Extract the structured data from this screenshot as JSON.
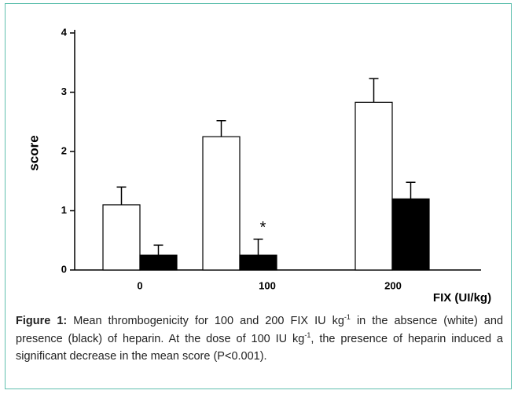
{
  "chart_data": {
    "type": "bar",
    "categories": [
      "0",
      "100",
      "200"
    ],
    "series": [
      {
        "color": "#ffffff",
        "values": [
          1.1,
          2.25,
          2.83
        ],
        "errors": [
          0.3,
          0.27,
          0.4
        ]
      },
      {
        "color": "#000000",
        "values": [
          0.25,
          0.25,
          1.2
        ],
        "errors": [
          0.17,
          0.27,
          0.28
        ]
      }
    ],
    "ylim": [
      0,
      4
    ],
    "yticks": [
      0,
      1,
      2,
      3,
      4
    ],
    "y_label": "score",
    "x_label": "FIX (UI/kg)",
    "annotation": "*"
  },
  "caption": {
    "label": "Figure 1:",
    "runs": [
      {
        "text": " Mean thrombogenicity for 100 and 200 FIX IU kg"
      },
      {
        "sup": "-1"
      },
      {
        "text": " in the absence (white) and presence (black) of heparin. At the dose of 100 IU kg"
      },
      {
        "sup": "-1"
      },
      {
        "text": ", the presence of heparin induced a significant decrease in the mean score (P<0.001)."
      }
    ]
  }
}
